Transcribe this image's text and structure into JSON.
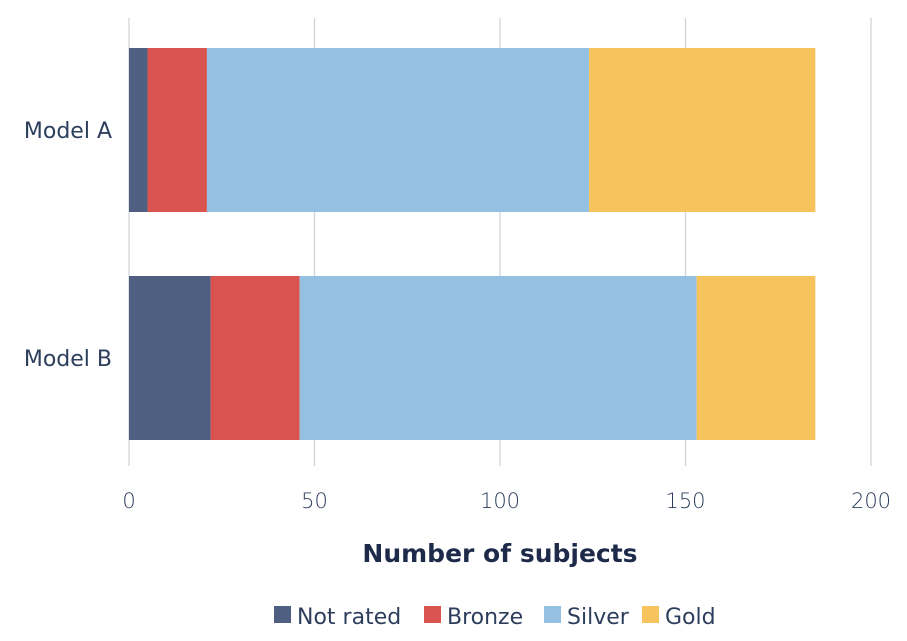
{
  "chart_data": {
    "type": "bar",
    "orientation": "horizontal",
    "stacked": true,
    "categories": [
      "Model A",
      "Model B"
    ],
    "series": [
      {
        "name": "Not rated",
        "color": "#4f5f82",
        "values": [
          5,
          22
        ]
      },
      {
        "name": "Bronze",
        "color": "#d9534f",
        "values": [
          16,
          24
        ]
      },
      {
        "name": "Silver",
        "color": "#94c1e2",
        "values": [
          103,
          107
        ]
      },
      {
        "name": "Gold",
        "color": "#f7c35c",
        "values": [
          61,
          32
        ]
      }
    ],
    "xlabel": "Number of subjects",
    "ylabel": "",
    "xlim": [
      0,
      200
    ],
    "xticks": [
      0,
      50,
      100,
      150,
      200
    ],
    "grid": "vertical",
    "legend": "bottom"
  }
}
